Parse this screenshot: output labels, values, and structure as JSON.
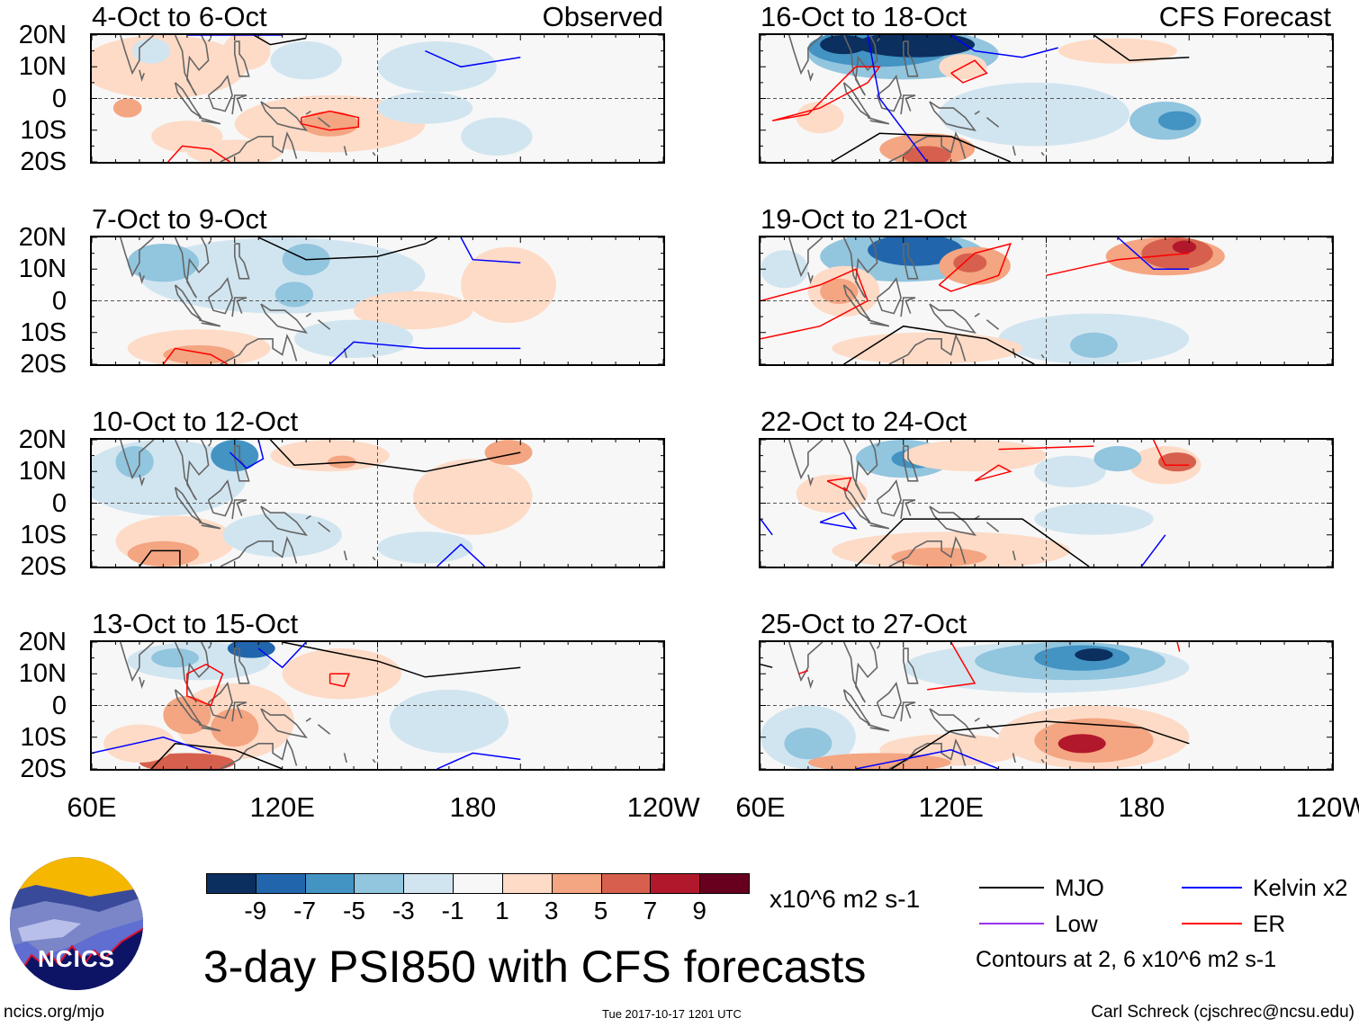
{
  "title": "3-day PSI850 with CFS forecasts",
  "observed_label": "Observed",
  "forecast_label": "CFS Forecast",
  "panels_left": [
    {
      "title": "4-Oct to 6-Oct"
    },
    {
      "title": "7-Oct to 9-Oct"
    },
    {
      "title": "10-Oct to 12-Oct"
    },
    {
      "title": "13-Oct to 15-Oct"
    }
  ],
  "panels_right": [
    {
      "title": "16-Oct to 18-Oct"
    },
    {
      "title": "19-Oct to 21-Oct"
    },
    {
      "title": "22-Oct to 24-Oct"
    },
    {
      "title": "25-Oct to 27-Oct"
    }
  ],
  "lat_labels": [
    "20N",
    "10N",
    "0",
    "10S",
    "20S"
  ],
  "lon_labels": [
    "60E",
    "120E",
    "180",
    "120W"
  ],
  "colorbar": {
    "labels": [
      "-9",
      "-7",
      "-5",
      "-3",
      "-1",
      "1",
      "3",
      "5",
      "7",
      "9"
    ],
    "colors": [
      "#0b2f5e",
      "#2166ac",
      "#4393c3",
      "#92c5de",
      "#d1e5f0",
      "#f7f7f7",
      "#fddbc7",
      "#f4a582",
      "#d6604d",
      "#b2182b",
      "#67001f"
    ],
    "units": "x10^6 m2 s-1"
  },
  "legend": {
    "items": [
      {
        "label": "MJO",
        "color": "#000000"
      },
      {
        "label": "Kelvin x2",
        "color": "#0000ff"
      },
      {
        "label": "Low",
        "color": "#9933ee"
      },
      {
        "label": "ER",
        "color": "#ff0000"
      }
    ],
    "note": "Contours at 2, 6 x10^6 m2 s-1"
  },
  "logo_text": "NCICS",
  "url": "ncics.org/mjo",
  "timestamp": "Tue 2017-10-17 1201 UTC",
  "credit": "Carl Schreck (cjschrec@ncsu.edu)"
}
